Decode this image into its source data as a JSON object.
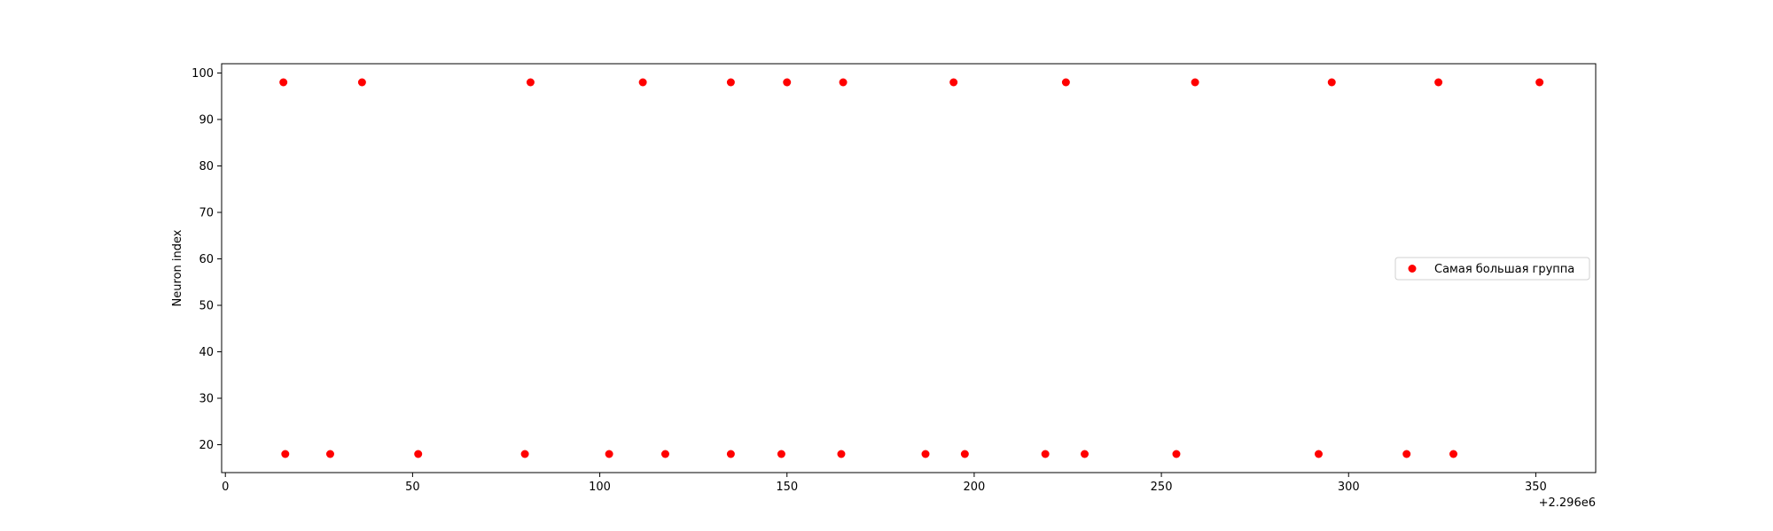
{
  "chart_data": {
    "type": "scatter",
    "title": "",
    "xlabel": "",
    "ylabel": "Neuron index",
    "x_offset_label": "+2.296e6",
    "xlim": [
      -1,
      366
    ],
    "ylim": [
      14,
      102
    ],
    "xticks": [
      0,
      50,
      100,
      150,
      200,
      250,
      300,
      350
    ],
    "yticks": [
      20,
      30,
      40,
      50,
      60,
      70,
      80,
      90,
      100
    ],
    "grid": false,
    "legend_position": "center-right",
    "series": [
      {
        "name": "Самая большая группа",
        "color": "#ff0000",
        "marker": "circle",
        "points": [
          {
            "x": 15.5,
            "y": 98
          },
          {
            "x": 36.5,
            "y": 98
          },
          {
            "x": 81.5,
            "y": 98
          },
          {
            "x": 111.5,
            "y": 98
          },
          {
            "x": 135,
            "y": 98
          },
          {
            "x": 150,
            "y": 98
          },
          {
            "x": 165,
            "y": 98
          },
          {
            "x": 194.5,
            "y": 98
          },
          {
            "x": 224.5,
            "y": 98
          },
          {
            "x": 259,
            "y": 98
          },
          {
            "x": 295.5,
            "y": 98
          },
          {
            "x": 324,
            "y": 98
          },
          {
            "x": 351,
            "y": 98
          },
          {
            "x": 16,
            "y": 18
          },
          {
            "x": 28,
            "y": 18
          },
          {
            "x": 51.5,
            "y": 18
          },
          {
            "x": 80,
            "y": 18
          },
          {
            "x": 102.5,
            "y": 18
          },
          {
            "x": 117.5,
            "y": 18
          },
          {
            "x": 135,
            "y": 18
          },
          {
            "x": 148.5,
            "y": 18
          },
          {
            "x": 164.5,
            "y": 18
          },
          {
            "x": 187,
            "y": 18
          },
          {
            "x": 197.5,
            "y": 18
          },
          {
            "x": 219,
            "y": 18
          },
          {
            "x": 229.5,
            "y": 18
          },
          {
            "x": 254,
            "y": 18
          },
          {
            "x": 292,
            "y": 18
          },
          {
            "x": 315.5,
            "y": 18
          },
          {
            "x": 328,
            "y": 18
          }
        ]
      }
    ]
  }
}
